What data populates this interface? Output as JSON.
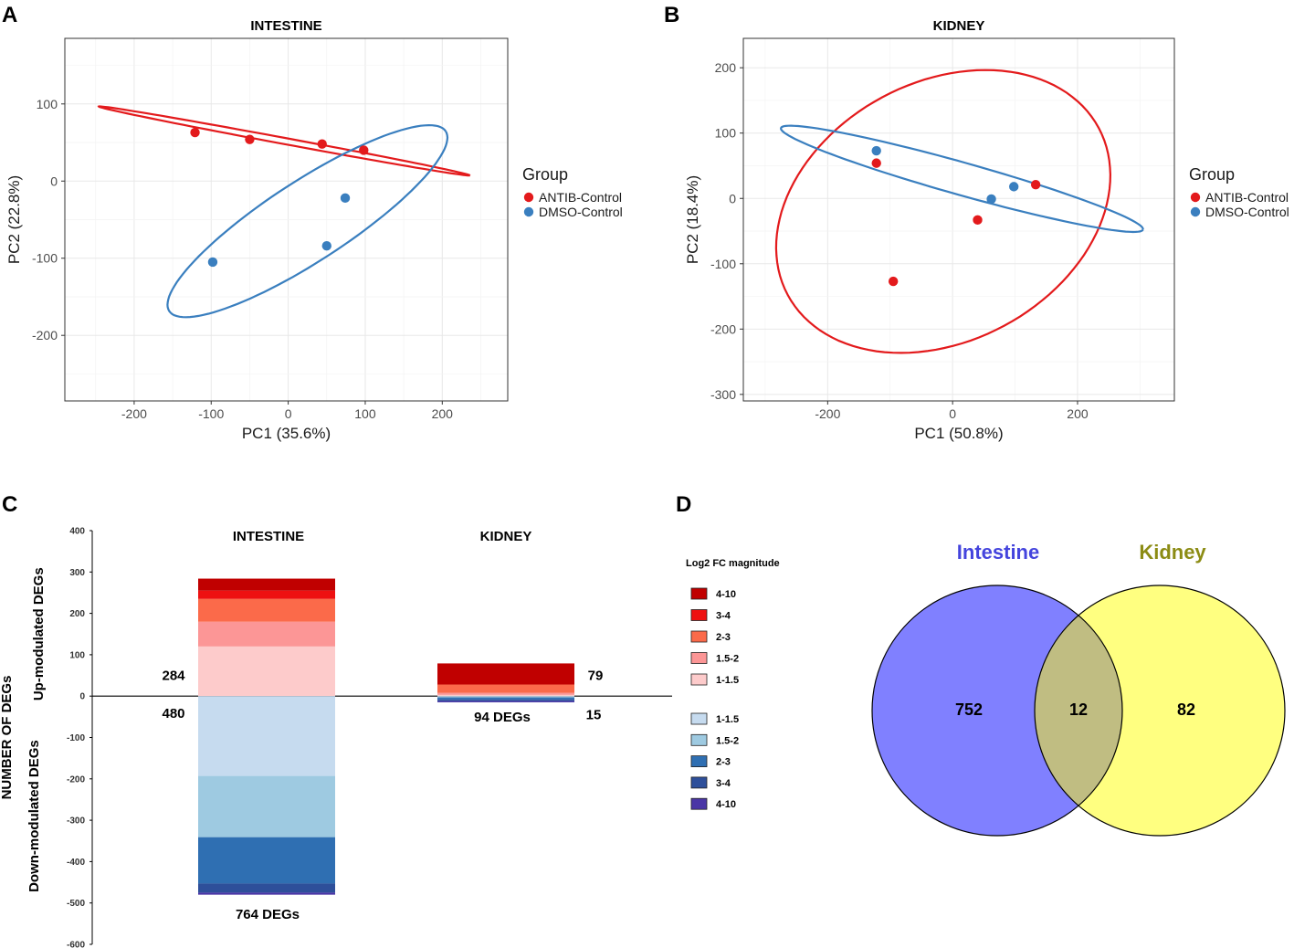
{
  "panels": {
    "a_letter": "A",
    "b_letter": "B",
    "c_letter": "C",
    "d_letter": "D"
  },
  "chart_data": [
    {
      "id": "pca_intestine",
      "type": "scatter",
      "title": "INTESTINE",
      "xlabel": "PC1 (35.6%)",
      "ylabel": "PC2 (22.8%)",
      "xlim": [
        -290,
        285
      ],
      "ylim": [
        -285,
        185
      ],
      "xticks": [
        -200,
        -100,
        0,
        100,
        200
      ],
      "yticks": [
        -200,
        -100,
        0,
        100
      ],
      "grid": true,
      "legend": {
        "title": "Group",
        "position": "right"
      },
      "series": [
        {
          "name": "ANTIB-Control",
          "color": "#e31a1c",
          "points": [
            [
              -121,
              63
            ],
            [
              -50,
              54
            ],
            [
              44,
              48
            ],
            [
              98,
              40
            ]
          ],
          "ellipse": {
            "center": [
              -5,
              52
            ],
            "semi_major": 245,
            "semi_minor": 4,
            "angle_deg": -10.5
          }
        },
        {
          "name": "DMSO-Control",
          "color": "#3a7fbf",
          "points": [
            [
              -98,
              -105
            ],
            [
              50,
              -84
            ],
            [
              74,
              -22
            ]
          ],
          "ellipse": {
            "center": [
              25,
              -52
            ],
            "semi_major": 214,
            "semi_minor": 52,
            "angle_deg": 33
          }
        }
      ]
    },
    {
      "id": "pca_kidney",
      "type": "scatter",
      "title": "KIDNEY",
      "xlabel": "PC1 (50.8%)",
      "ylabel": "PC2 (18.4%)",
      "xlim": [
        -335,
        355
      ],
      "ylim": [
        -310,
        245
      ],
      "xticks": [
        -200,
        0,
        200
      ],
      "yticks": [
        -300,
        -200,
        -100,
        0,
        100,
        200
      ],
      "grid": true,
      "legend": {
        "title": "Group",
        "position": "right"
      },
      "series": [
        {
          "name": "ANTIB-Control",
          "color": "#e31a1c",
          "points": [
            [
              -122,
              54
            ],
            [
              -95,
              -127
            ],
            [
              40,
              -33
            ],
            [
              133,
              21
            ]
          ],
          "ellipse": {
            "center": [
              -15,
              -20
            ],
            "semi_major": 280,
            "semi_minor": 200,
            "angle_deg": 25
          }
        },
        {
          "name": "DMSO-Control",
          "color": "#3a7fbf",
          "points": [
            [
              -122,
              73
            ],
            [
              62,
              -1
            ],
            [
              98,
              18
            ]
          ],
          "ellipse": {
            "center": [
              15,
              30
            ],
            "semi_major": 300,
            "semi_minor": 25,
            "angle_deg": -15
          }
        }
      ]
    },
    {
      "id": "deg_stacked",
      "type": "bar",
      "ylabel": "NUMBER OF DEGs",
      "ylabel_up": "Up-modulated DEGs",
      "ylabel_down": "Down-modulated DEGs",
      "ylim": [
        -600,
        400
      ],
      "yticks": [
        400,
        300,
        200,
        100,
        0,
        -100,
        -200,
        -300,
        -400,
        -500,
        -600
      ],
      "legend_title": "Log2 FC magnitude",
      "up_categories": [
        {
          "label": "4-10",
          "color": "#c00000"
        },
        {
          "label": "3-4",
          "color": "#ee1111"
        },
        {
          "label": "2-3",
          "color": "#fb6a4a"
        },
        {
          "label": "1.5-2",
          "color": "#fc9696"
        },
        {
          "label": "1-1.5",
          "color": "#fdcbcb"
        }
      ],
      "down_categories": [
        {
          "label": "1-1.5",
          "color": "#c6dbef"
        },
        {
          "label": "1.5-2",
          "color": "#9ecae1"
        },
        {
          "label": "2-3",
          "color": "#2f6fb2"
        },
        {
          "label": "3-4",
          "color": "#2e4f9a"
        },
        {
          "label": "4-10",
          "color": "#4a36a6"
        }
      ],
      "groups": [
        {
          "name": "INTESTINE",
          "up": {
            "1-1.5": 120,
            "1.5-2": 60,
            "2-3": 55,
            "3-4": 20,
            "4-10": 29
          },
          "down": {
            "1-1.5": 193,
            "1.5-2": 148,
            "2-3": 112,
            "3-4": 22,
            "4-10": 5
          },
          "up_total": "284",
          "down_total": "480",
          "total_label": "764 DEGs"
        },
        {
          "name": "KIDNEY",
          "up": {
            "1-1.5": 3,
            "1.5-2": 5,
            "2-3": 20,
            "3-4": 0,
            "4-10": 51
          },
          "down": {
            "1-1.5": 2,
            "1.5-2": 1,
            "2-3": 5,
            "3-4": 4,
            "4-10": 3
          },
          "up_total": "79",
          "down_total": "15",
          "total_label": "94 DEGs"
        }
      ]
    },
    {
      "id": "venn",
      "type": "venn",
      "sets": [
        {
          "name": "Intestine",
          "color": "#8080ff",
          "title_color": "#4444dd",
          "only": "752"
        },
        {
          "name": "Kidney",
          "color": "#ffff80",
          "title_color": "#8c8c14",
          "only": "82"
        }
      ],
      "intersection": "12",
      "intersection_color": "#c0bd82"
    }
  ]
}
